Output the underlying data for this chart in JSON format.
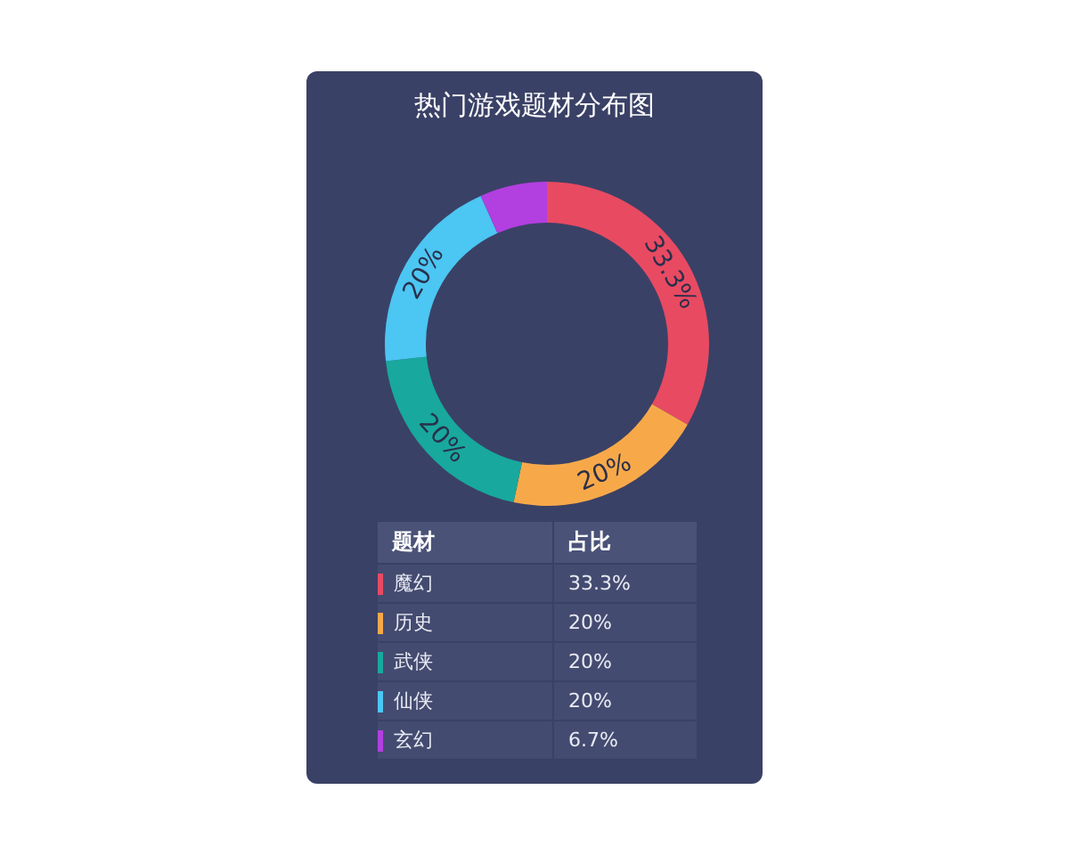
{
  "chart_data": {
    "type": "donut",
    "title": "热门游戏题材分布图",
    "categories": [
      "魔幻",
      "历史",
      "武侠",
      "仙侠",
      "玄幻"
    ],
    "values": [
      33.3,
      20,
      20,
      20,
      6.7
    ],
    "colors": [
      "#e84a62",
      "#f7a94a",
      "#18a89e",
      "#4cc6f2",
      "#b23fe0"
    ],
    "value_labels": [
      "33.3%",
      "20%",
      "20%",
      "20%",
      "6.7%"
    ],
    "annotations": [
      "题材",
      "占比"
    ],
    "legend": "bottom"
  }
}
